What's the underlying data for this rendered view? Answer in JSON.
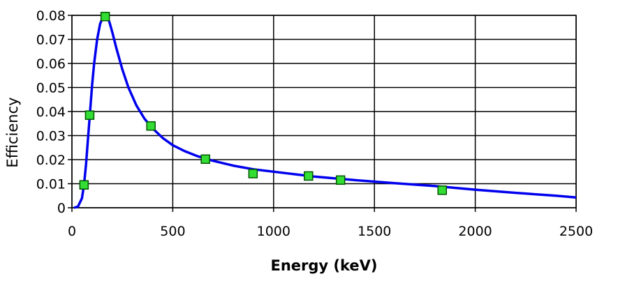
{
  "chart_data": {
    "type": "scatter",
    "xlabel": "Energy (keV)",
    "ylabel": "Efficiency",
    "xlim": [
      0,
      2500
    ],
    "ylim": [
      0,
      0.08
    ],
    "x_ticks": [
      "0",
      "500",
      "1000",
      "1500",
      "2000",
      "2500"
    ],
    "y_ticks": [
      "0",
      "0.01",
      "0.02",
      "0.03",
      "0.04",
      "0.05",
      "0.06",
      "0.07",
      "0.08"
    ],
    "grid": true,
    "legend": "none",
    "series": [
      {
        "type": "scatter",
        "color": "#33dd33",
        "points": [
          {
            "x": 60,
            "y": 0.0095
          },
          {
            "x": 88,
            "y": 0.0385
          },
          {
            "x": 165,
            "y": 0.0795
          },
          {
            "x": 392,
            "y": 0.034
          },
          {
            "x": 662,
            "y": 0.0202
          },
          {
            "x": 898,
            "y": 0.0142
          },
          {
            "x": 1173,
            "y": 0.0132
          },
          {
            "x": 1332,
            "y": 0.0115
          },
          {
            "x": 1836,
            "y": 0.0073
          }
        ]
      },
      {
        "type": "line",
        "color": "#0000ee",
        "points": [
          {
            "x": 10,
            "y": 0.0
          },
          {
            "x": 30,
            "y": 0.0005
          },
          {
            "x": 50,
            "y": 0.004
          },
          {
            "x": 60,
            "y": 0.0095
          },
          {
            "x": 70,
            "y": 0.018
          },
          {
            "x": 80,
            "y": 0.029
          },
          {
            "x": 90,
            "y": 0.04
          },
          {
            "x": 100,
            "y": 0.051
          },
          {
            "x": 110,
            "y": 0.06
          },
          {
            "x": 125,
            "y": 0.07
          },
          {
            "x": 140,
            "y": 0.0765
          },
          {
            "x": 155,
            "y": 0.0795
          },
          {
            "x": 170,
            "y": 0.08
          },
          {
            "x": 185,
            "y": 0.0775
          },
          {
            "x": 200,
            "y": 0.073
          },
          {
            "x": 220,
            "y": 0.0665
          },
          {
            "x": 250,
            "y": 0.0575
          },
          {
            "x": 280,
            "y": 0.05
          },
          {
            "x": 320,
            "y": 0.0425
          },
          {
            "x": 360,
            "y": 0.037
          },
          {
            "x": 400,
            "y": 0.033
          },
          {
            "x": 450,
            "y": 0.029
          },
          {
            "x": 500,
            "y": 0.026
          },
          {
            "x": 560,
            "y": 0.0235
          },
          {
            "x": 620,
            "y": 0.0215
          },
          {
            "x": 700,
            "y": 0.0195
          },
          {
            "x": 800,
            "y": 0.0175
          },
          {
            "x": 900,
            "y": 0.016
          },
          {
            "x": 1000,
            "y": 0.015
          },
          {
            "x": 1200,
            "y": 0.013
          },
          {
            "x": 1400,
            "y": 0.0115
          },
          {
            "x": 1600,
            "y": 0.0102
          },
          {
            "x": 1800,
            "y": 0.009
          },
          {
            "x": 2000,
            "y": 0.0075
          },
          {
            "x": 2200,
            "y": 0.0062
          },
          {
            "x": 2400,
            "y": 0.005
          },
          {
            "x": 2500,
            "y": 0.0043
          }
        ]
      }
    ]
  }
}
